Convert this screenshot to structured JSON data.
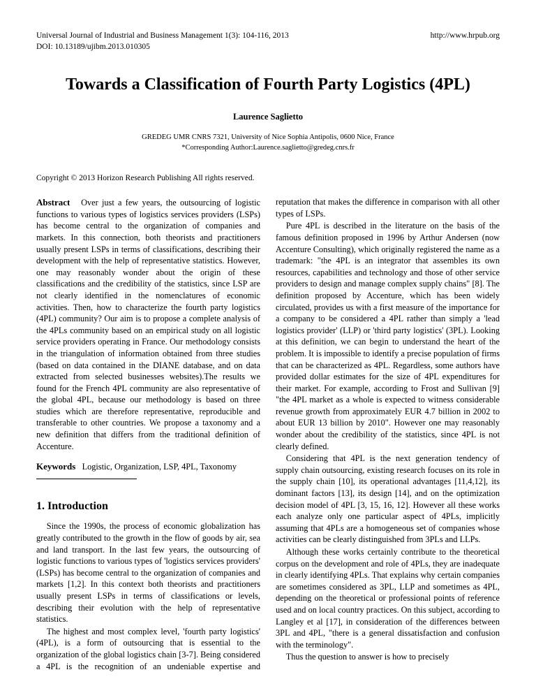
{
  "header": {
    "journal": "Universal Journal of Industrial and Business Management 1(3): 104-116, 2013",
    "doi": "DOI: 10.13189/ujibm.2013.010305",
    "url": "http://www.hrpub.org"
  },
  "title": "Towards a Classification of Fourth Party Logistics (4PL)",
  "author": "Laurence Saglietto",
  "affil_line1": "GREDEG UMR CNRS 7321, University of Nice Sophia Antipolis, 0600 Nice, France",
  "affil_line2": "*Corresponding Author:Laurence.saglietto@gredeg.cnrs.fr",
  "copyright": "Copyright © 2013 Horizon Research Publishing All rights reserved.",
  "abstract_label": "Abstract",
  "abstract_text": "Over just a few years, the outsourcing of logistic functions to various types of logistics services providers (LSPs) has become central to the organization of companies and markets. In this connection, both theorists and practitioners usually present LSPs in terms of classifications, describing their development with the help of representative statistics. However, one may reasonably wonder about the origin of these classifications and the credibility of the statistics, since LSP are not clearly identified in the nomenclatures of economic activities. Then, how to characterize the fourth party logistics (4PL) community? Our aim is to propose a complete analysis of the 4PLs community based on an empirical study on all logistic service providers operating in France. Our methodology consists in the triangulation of information obtained from three studies (based on data contained in the DIANE database, and on data extracted from selected businesses websites).The results we found for the French 4PL community are also representative of the global 4PL, because our methodology is based on three studies which are therefore representative, reproducible and transferable to other countries. We propose a taxonomy and a new definition that differs from the traditional definition of Accenture.",
  "keywords_label": "Keywords",
  "keywords_text": "Logistic, Organization, LSP, 4PL, Taxonomy",
  "section1_heading": "1. Introduction",
  "p1": "Since the 1990s, the process of economic globalization has greatly contributed to the growth in the flow of goods by air, sea and land transport. In the last few years, the outsourcing of logistic functions to various types of 'logistics services providers' (LSPs) has become central to the organization of companies and markets [1,2]. In this context both theorists and practitioners usually present LSPs in terms of classifications or levels, describing their evolution with the help of representative statistics.",
  "p2": "The highest and most complex level, 'fourth party logistics' (4PL), is a form of outsourcing that is essential to the organization of the global logistics chain [3-7]. Being considered a 4PL is the recognition of an undeniable expertise and reputation that makes the difference in comparison with all other types of LSPs.",
  "p3": "Pure 4PL is described in the literature on the basis of the famous definition proposed in 1996 by Arthur Andersen (now Accenture Consulting), which originally registered the name as a trademark: \"the 4PL is an integrator that assembles its own resources, capabilities and technology and those of other service providers to design and manage complex supply chains\" [8]. The definition proposed by Accenture, which has been widely circulated, provides us with a first measure of the importance for a company to be considered a 4PL rather than simply a 'lead logistics provider' (LLP) or 'third party logistics' (3PL). Looking at this definition, we can begin to understand the heart of the problem. It is impossible to identify a precise population of firms that can be characterized as 4PL. Regardless, some authors have provided dollar estimates for the size of 4PL expenditures for their market. For example, according to Frost and Sullivan [9] \"the 4PL market as a whole is expected to witness considerable revenue growth from approximately EUR 4.7 billion in 2002 to about EUR 13 billion by 2010\". However one may reasonably wonder about the credibility of the statistics, since 4PL is not clearly defined.",
  "p4": "Considering that 4PL is the next generation tendency of supply chain outsourcing, existing research focuses on its role in the supply chain [10], its operational advantages [11,4,12], its dominant factors [13], its design [14], and on the optimization decision model of 4PL [3, 15, 16, 12]. However all these works each analyze only one particular aspect of 4PLs, implicitly assuming that 4PLs are a homogeneous set of companies whose activities can be clearly distinguished from 3PLs and LLPs.",
  "p5": "Although these works certainly contribute to the theoretical corpus on the development and role of 4PLs, they are inadequate in clearly identifying 4PLs. That explains why certain companies are sometimes considered as 3PL, LLP and sometimes as 4PL, depending on the theoretical or professional points of reference used and on local country practices. On this subject, according to Langley et al [17], in consideration of the differences between 3PL and 4PL, \"there is a general dissatisfaction and confusion with the terminology\".",
  "p6": "Thus the question to answer is how to precisely"
}
